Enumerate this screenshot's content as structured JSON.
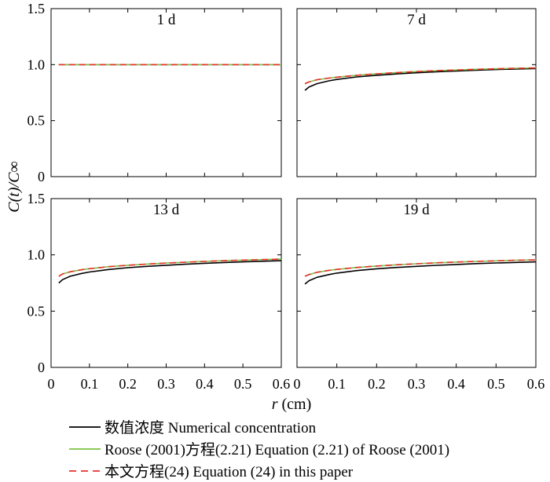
{
  "chart_data": {
    "type": "line",
    "ylabel": "C(t)/C∞",
    "xlabel": "r (cm)",
    "shared_x_ticks": [
      "0",
      "0.1",
      "0.2",
      "0.3",
      "0.4",
      "0.5",
      "0.6"
    ],
    "shared_y_ticks": [
      "0",
      "0.5",
      "1.0",
      "1.5"
    ],
    "legend": [
      {
        "label": "数值浓度 Numerical concentration",
        "color": "#000000",
        "dash": "solid"
      },
      {
        "label": "Roose (2001)方程(2.21) Equation (2.21) of Roose (2001)",
        "color": "#7cc242",
        "dash": "solid"
      },
      {
        "label": "本文方程(24) Equation (24) in this paper",
        "color": "#e8312f",
        "dash": "dashed"
      }
    ],
    "panels": [
      {
        "title": "1 d",
        "xlim": [
          0,
          0.6
        ],
        "ylim": [
          0,
          1.5
        ],
        "x": [
          0.02,
          0.03,
          0.05,
          0.08,
          0.1,
          0.15,
          0.2,
          0.25,
          0.3,
          0.35,
          0.4,
          0.45,
          0.5,
          0.55,
          0.6
        ],
        "series": [
          {
            "values": [
              1.0,
              1.0,
              1.0,
              1.0,
              1.0,
              1.0,
              1.0,
              1.0,
              1.0,
              1.0,
              1.0,
              1.0,
              1.0,
              1.0,
              1.0
            ]
          },
          {
            "values": [
              1.0,
              1.0,
              1.0,
              1.0,
              1.0,
              1.0,
              1.0,
              1.0,
              1.0,
              1.0,
              1.0,
              1.0,
              1.0,
              1.0,
              1.0
            ]
          },
          {
            "values": [
              1.0,
              1.0,
              1.0,
              1.0,
              1.0,
              1.0,
              1.0,
              1.0,
              1.0,
              1.0,
              1.0,
              1.0,
              1.0,
              1.0,
              1.0
            ]
          }
        ]
      },
      {
        "title": "7 d",
        "xlim": [
          0,
          0.6
        ],
        "ylim": [
          0,
          1.5
        ],
        "x": [
          0.02,
          0.03,
          0.05,
          0.08,
          0.1,
          0.15,
          0.2,
          0.25,
          0.3,
          0.35,
          0.4,
          0.45,
          0.5,
          0.55,
          0.6
        ],
        "series": [
          {
            "values": [
              0.77,
              0.8,
              0.83,
              0.855,
              0.868,
              0.89,
              0.905,
              0.917,
              0.927,
              0.936,
              0.943,
              0.95,
              0.956,
              0.961,
              0.965
            ]
          },
          {
            "values": [
              0.83,
              0.845,
              0.865,
              0.88,
              0.888,
              0.905,
              0.918,
              0.929,
              0.938,
              0.946,
              0.952,
              0.958,
              0.963,
              0.967,
              0.971
            ]
          },
          {
            "values": [
              0.83,
              0.845,
              0.865,
              0.88,
              0.888,
              0.905,
              0.918,
              0.929,
              0.938,
              0.946,
              0.952,
              0.958,
              0.963,
              0.967,
              0.971
            ]
          }
        ]
      },
      {
        "title": "13 d",
        "xlim": [
          0,
          0.6
        ],
        "ylim": [
          0,
          1.5
        ],
        "x": [
          0.02,
          0.03,
          0.05,
          0.08,
          0.1,
          0.15,
          0.2,
          0.25,
          0.3,
          0.35,
          0.4,
          0.45,
          0.5,
          0.55,
          0.6
        ],
        "series": [
          {
            "values": [
              0.75,
              0.78,
              0.81,
              0.835,
              0.848,
              0.87,
              0.886,
              0.898,
              0.908,
              0.917,
              0.925,
              0.932,
              0.938,
              0.943,
              0.948
            ]
          },
          {
            "values": [
              0.81,
              0.83,
              0.85,
              0.868,
              0.877,
              0.895,
              0.908,
              0.918,
              0.927,
              0.935,
              0.942,
              0.948,
              0.953,
              0.958,
              0.962
            ]
          },
          {
            "values": [
              0.81,
              0.83,
              0.85,
              0.868,
              0.877,
              0.895,
              0.908,
              0.918,
              0.927,
              0.935,
              0.942,
              0.948,
              0.953,
              0.958,
              0.962
            ]
          }
        ]
      },
      {
        "title": "19 d",
        "xlim": [
          0,
          0.6
        ],
        "ylim": [
          0,
          1.5
        ],
        "x": [
          0.02,
          0.03,
          0.05,
          0.08,
          0.1,
          0.15,
          0.2,
          0.25,
          0.3,
          0.35,
          0.4,
          0.45,
          0.5,
          0.55,
          0.6
        ],
        "series": [
          {
            "values": [
              0.74,
              0.77,
              0.8,
              0.825,
              0.838,
              0.86,
              0.876,
              0.888,
              0.898,
              0.907,
              0.915,
              0.922,
              0.928,
              0.933,
              0.938
            ]
          },
          {
            "values": [
              0.81,
              0.825,
              0.845,
              0.862,
              0.871,
              0.888,
              0.901,
              0.912,
              0.921,
              0.929,
              0.936,
              0.942,
              0.947,
              0.952,
              0.956
            ]
          },
          {
            "values": [
              0.81,
              0.825,
              0.845,
              0.862,
              0.871,
              0.888,
              0.901,
              0.912,
              0.921,
              0.929,
              0.936,
              0.942,
              0.947,
              0.952,
              0.956
            ]
          }
        ]
      }
    ]
  }
}
